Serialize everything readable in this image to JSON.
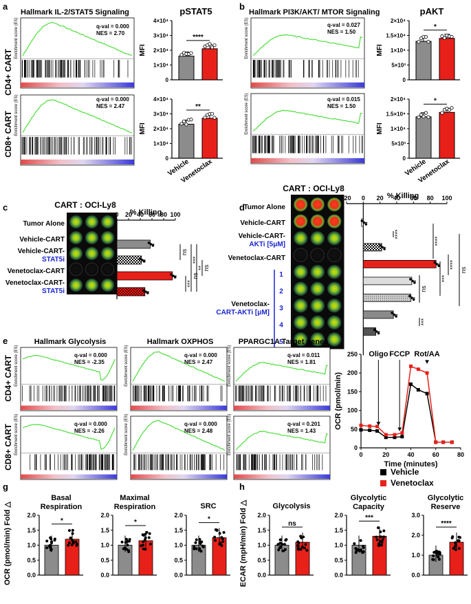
{
  "panels": {
    "a": {
      "letter": "a",
      "gsea_title": "Hallmark IL-2/STAT5 Signaling",
      "row_labels": [
        "CD4+ CART",
        "CD8+ CART"
      ],
      "es_axis_label": "Enrichment score (ES)",
      "gsea_stats": [
        {
          "qval": "q-val = 0.000",
          "nes": "NES = 2.70"
        },
        {
          "qval": "q-val = 0.000",
          "nes": "NES = 2.47"
        }
      ],
      "bar_title": "pSTAT5",
      "mfi_label": "MFI",
      "sig": [
        "****",
        "**"
      ],
      "yticks": [
        [
          "4×10⁴",
          "3×10⁴",
          "2×10⁴",
          "1×10⁴",
          "0"
        ],
        [
          "4×10⁴",
          "3×10⁴",
          "2×10⁴",
          "1×10⁴",
          "0"
        ]
      ],
      "xcats": [
        "Vehicle",
        "Venetoclax"
      ]
    },
    "b": {
      "letter": "b",
      "gsea_title": "Hallmark PI3K/AKT/ MTOR Signaling",
      "gsea_stats": [
        {
          "qval": "q-val = 0.027",
          "nes": "NES = 1.50"
        },
        {
          "qval": "q-val = 0.015",
          "nes": "NES = 1.50"
        }
      ],
      "bar_title": "pAKT",
      "sig": [
        "*",
        "*"
      ],
      "yticks": [
        [
          "2×10⁴",
          "1.5×10⁴",
          "1×10⁴",
          "5×10³",
          "0"
        ],
        [
          "2×10⁴",
          "1.5×10⁴",
          "1×10⁴",
          "5×10³",
          "0"
        ]
      ]
    },
    "c": {
      "letter": "c",
      "title": "CART : OCI-Ly8",
      "axis_title": "% Killing",
      "ticks": [
        "0",
        "20",
        "40",
        "60",
        "80",
        "100"
      ],
      "rows": [
        {
          "label": "Tumor Alone",
          "sub": ""
        },
        {
          "label": "Vehicle-CART",
          "sub": ""
        },
        {
          "label": "Vehicle-CART-",
          "sub": "STAT5i"
        },
        {
          "label": "Venetoclax-CART",
          "sub": ""
        },
        {
          "label": "Venetoclax-CART-",
          "sub": "STAT5i"
        }
      ],
      "sig": [
        "ns",
        "***",
        "**",
        "ns",
        "***",
        "ns"
      ]
    },
    "d": {
      "letter": "d",
      "title": "CART : OCI-Ly8",
      "axis_title": "% Killing",
      "ticks": [
        "-20",
        "0",
        "20",
        "40",
        "60",
        "80",
        "100"
      ],
      "rows": [
        {
          "label": "Tumor Alone",
          "sub": ""
        },
        {
          "label": "Vehicle-CART",
          "sub": ""
        },
        {
          "label": "Vehicle-CART-",
          "sub": "AKTi [5μM]"
        },
        {
          "label": "Venetoclax-CART",
          "sub": ""
        },
        {
          "label": "Venetoclax-",
          "sub": "CART-AKTi [μM]"
        }
      ],
      "doses": [
        "1",
        "2",
        "3",
        "4",
        "5"
      ],
      "sig": [
        "****",
        "****",
        "****",
        "ns",
        "***",
        "ns",
        "***"
      ]
    },
    "e": {
      "letter": "e",
      "titles": [
        "Hallmark Glycolysis",
        "Hallmark OXPHOS",
        "PPARGC1A Target genes"
      ],
      "stats": [
        [
          {
            "qval": "q-val = 0.000",
            "nes": "NES = -2.35"
          },
          {
            "qval": "q-val = 0.000",
            "nes": "NES = 2.47"
          },
          {
            "qval": "q-val = 0.011",
            "nes": "NES = 1.81"
          }
        ],
        [
          {
            "qval": "q-val = 0.000",
            "nes": "NES = -2.26"
          },
          {
            "qval": "q-val = 0.000",
            "nes": "NES = 2.48"
          },
          {
            "qval": "q-val = 0.201",
            "nes": "NES = 1.43"
          }
        ]
      ]
    },
    "f": {
      "letter": "f",
      "ylabel": "OCR (pmol/min)",
      "xlabel": "Time (minutes)",
      "yticks": [
        "250",
        "200",
        "150",
        "100",
        "50",
        "0"
      ],
      "xticks": [
        "0",
        "20",
        "40",
        "60",
        "80"
      ],
      "injections": [
        "Oligo",
        "FCCP",
        "Rot/AA"
      ],
      "legend": [
        {
          "label": "Vehicle",
          "color": "#000000"
        },
        {
          "label": "Venetoclax",
          "color": "#e8201a"
        }
      ]
    },
    "g": {
      "letter": "g",
      "ylabel": "OCR (pmol/min) Fold △",
      "plots": [
        {
          "title1": "Basal",
          "title2": "Respiration",
          "sig": "*"
        },
        {
          "title1": "Maximal",
          "title2": "Respiration",
          "sig": "*"
        },
        {
          "title1": "SRC",
          "title2": "",
          "sig": "*"
        }
      ],
      "yticks": [
        "2.0",
        "1.5",
        "1.0",
        "0.5",
        "0.0"
      ]
    },
    "h": {
      "letter": "h",
      "ylabel": "ECAR (mpH/min) Fold △",
      "plots": [
        {
          "title1": "Glycolysis",
          "title2": "",
          "sig": "ns"
        },
        {
          "title1": "Glycolytic",
          "title2": "Capacity",
          "sig": "***"
        },
        {
          "title1": "Glycolytic",
          "title2": "Reserve",
          "sig": "****"
        }
      ],
      "yticks_a": [
        "2.0",
        "1.5",
        "1.0",
        "0.5",
        "0.0"
      ],
      "yticks_b": [
        "3.0",
        "2.0",
        "1.0",
        "0.0"
      ]
    }
  },
  "chart_data": [
    {
      "type": "bar",
      "panel": "a-top",
      "title": "pSTAT5",
      "ylabel": "MFI",
      "categories": [
        "Vehicle",
        "Venetoclax"
      ],
      "values": [
        16000,
        21000
      ],
      "ylim": [
        0,
        40000
      ]
    },
    {
      "type": "bar",
      "panel": "a-bottom",
      "ylabel": "MFI",
      "categories": [
        "Vehicle",
        "Venetoclax"
      ],
      "values": [
        23000,
        27000
      ],
      "ylim": [
        0,
        40000
      ]
    },
    {
      "type": "bar",
      "panel": "b-top",
      "title": "pAKT",
      "ylabel": "MFI",
      "categories": [
        "Vehicle",
        "Venetoclax"
      ],
      "values": [
        13000,
        14000
      ],
      "ylim": [
        0,
        20000
      ]
    },
    {
      "type": "bar",
      "panel": "b-bottom",
      "ylabel": "MFI",
      "categories": [
        "Vehicle",
        "Venetoclax"
      ],
      "values": [
        14000,
        15500
      ],
      "ylim": [
        0,
        20000
      ]
    },
    {
      "type": "bar",
      "panel": "c",
      "title": "% Killing",
      "categories": [
        "Tumor Alone",
        "Vehicle-CART",
        "Vehicle-CART-STAT5i",
        "Venetoclax-CART",
        "Venetoclax-CART-STAT5i"
      ],
      "values": [
        0,
        57,
        42,
        95,
        48
      ],
      "xlim": [
        0,
        100
      ]
    },
    {
      "type": "bar",
      "panel": "d",
      "title": "% Killing",
      "categories": [
        "Tumor Alone",
        "Vehicle-CART",
        "Vehicle-CART-AKTi [5μM]",
        "Venetoclax-CART",
        "1",
        "2",
        "3",
        "4",
        "5"
      ],
      "values": [
        -2,
        22,
        null,
        87,
        58,
        57,
        null,
        36,
        15
      ],
      "xlim": [
        -20,
        100
      ]
    },
    {
      "type": "line",
      "panel": "f",
      "xlabel": "Time (minutes)",
      "ylabel": "OCR (pmol/min)",
      "x": [
        0,
        7,
        13,
        20,
        27,
        33,
        40,
        46,
        53,
        60,
        66,
        73
      ],
      "series": [
        {
          "name": "Vehicle",
          "values": [
            48,
            47,
            45,
            28,
            28,
            30,
            170,
            155,
            145,
            15,
            15,
            15
          ]
        },
        {
          "name": "Venetoclax",
          "values": [
            60,
            58,
            57,
            35,
            35,
            40,
            218,
            210,
            200,
            15,
            15,
            15
          ]
        }
      ],
      "xlim": [
        0,
        80
      ],
      "ylim": [
        0,
        250
      ]
    },
    {
      "type": "bar",
      "panel": "g",
      "ylabel": "OCR (pmol/min) Fold △",
      "categories": [
        "Basal Respiration",
        "Maximal Respiration",
        "SRC"
      ],
      "series": [
        {
          "name": "Vehicle",
          "values": [
            1.0,
            1.0,
            1.0
          ]
        },
        {
          "name": "Venetoclax",
          "values": [
            1.2,
            1.15,
            1.25
          ]
        }
      ],
      "ylim": [
        0,
        2.0
      ]
    },
    {
      "type": "bar",
      "panel": "h",
      "ylabel": "ECAR (mpH/min) Fold △",
      "categories": [
        "Glycolysis",
        "Glycolytic Capacity",
        "Glycolytic Reserve"
      ],
      "series": [
        {
          "name": "Vehicle",
          "values": [
            1.0,
            1.0,
            1.0
          ]
        },
        {
          "name": "Venetoclax",
          "values": [
            1.1,
            1.3,
            1.65
          ]
        }
      ]
    }
  ]
}
